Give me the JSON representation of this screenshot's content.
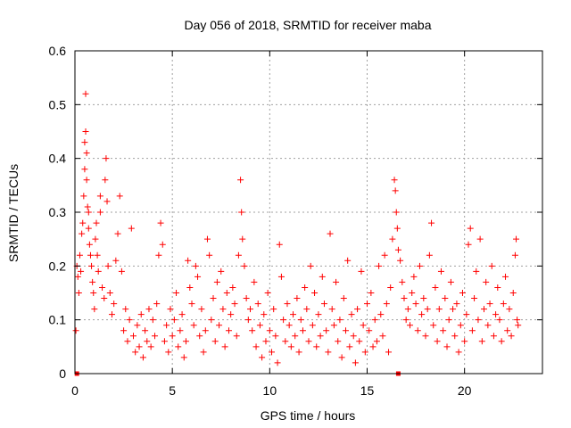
{
  "chart_data": {
    "type": "scatter",
    "title": "Day 056 of 2018, SRMTID for receiver maba",
    "xlabel": "GPS time / hours",
    "ylabel": "SRMTID / TECUs",
    "xlim": [
      0,
      24
    ],
    "ylim": [
      0,
      0.6
    ],
    "x_ticks": [
      0,
      5,
      10,
      15,
      20
    ],
    "x_tick_labels": [
      "0",
      "5",
      "10",
      "15",
      "20"
    ],
    "y_ticks": [
      0,
      0.1,
      0.2,
      0.3,
      0.4,
      0.5,
      0.6
    ],
    "y_tick_labels": [
      "0",
      "0.1",
      "0.2",
      "0.3",
      "0.4",
      "0.5",
      "0.6"
    ],
    "grid": true,
    "marker": "+",
    "marker_color": "#ff0000",
    "grid_color": "#a0a0a0",
    "data_range_hours": [
      0,
      22.75
    ],
    "series": [
      {
        "name": "SRMTID",
        "points": [
          [
            0.05,
            0.08
          ],
          [
            0.1,
            0.2
          ],
          [
            0.15,
            0.18
          ],
          [
            0.2,
            0.15
          ],
          [
            0.25,
            0.22
          ],
          [
            0.3,
            0.19
          ],
          [
            0.35,
            0.26
          ],
          [
            0.4,
            0.28
          ],
          [
            0.45,
            0.33
          ],
          [
            0.5,
            0.38
          ],
          [
            0.5,
            0.43
          ],
          [
            0.55,
            0.45
          ],
          [
            0.55,
            0.52
          ],
          [
            0.6,
            0.41
          ],
          [
            0.6,
            0.36
          ],
          [
            0.65,
            0.31
          ],
          [
            0.7,
            0.3
          ],
          [
            0.7,
            0.27
          ],
          [
            0.75,
            0.24
          ],
          [
            0.8,
            0.22
          ],
          [
            0.85,
            0.2
          ],
          [
            0.9,
            0.17
          ],
          [
            0.95,
            0.15
          ],
          [
            1.0,
            0.12
          ],
          [
            1.05,
            0.25
          ],
          [
            1.1,
            0.28
          ],
          [
            1.15,
            0.22
          ],
          [
            1.2,
            0.19
          ],
          [
            1.3,
            0.33
          ],
          [
            1.3,
            0.3
          ],
          [
            1.4,
            0.16
          ],
          [
            1.5,
            0.14
          ],
          [
            1.55,
            0.36
          ],
          [
            1.6,
            0.4
          ],
          [
            1.65,
            0.32
          ],
          [
            1.7,
            0.2
          ],
          [
            1.8,
            0.15
          ],
          [
            1.9,
            0.11
          ],
          [
            2.0,
            0.13
          ],
          [
            2.1,
            0.21
          ],
          [
            2.2,
            0.26
          ],
          [
            2.3,
            0.33
          ],
          [
            2.4,
            0.19
          ],
          [
            2.5,
            0.08
          ],
          [
            2.6,
            0.12
          ],
          [
            2.7,
            0.06
          ],
          [
            2.8,
            0.1
          ],
          [
            2.9,
            0.27
          ],
          [
            3.0,
            0.07
          ],
          [
            3.1,
            0.04
          ],
          [
            3.2,
            0.09
          ],
          [
            3.3,
            0.05
          ],
          [
            3.4,
            0.11
          ],
          [
            3.5,
            0.03
          ],
          [
            3.6,
            0.08
          ],
          [
            3.7,
            0.06
          ],
          [
            3.8,
            0.12
          ],
          [
            3.9,
            0.05
          ],
          [
            4.0,
            0.1
          ],
          [
            4.1,
            0.07
          ],
          [
            4.2,
            0.13
          ],
          [
            4.3,
            0.22
          ],
          [
            4.4,
            0.28
          ],
          [
            4.5,
            0.24
          ],
          [
            4.6,
            0.06
          ],
          [
            4.7,
            0.09
          ],
          [
            4.8,
            0.04
          ],
          [
            4.9,
            0.12
          ],
          [
            5.0,
            0.07
          ],
          [
            5.1,
            0.1
          ],
          [
            5.2,
            0.15
          ],
          [
            5.3,
            0.05
          ],
          [
            5.4,
            0.08
          ],
          [
            5.5,
            0.11
          ],
          [
            5.6,
            0.03
          ],
          [
            5.7,
            0.06
          ],
          [
            5.8,
            0.21
          ],
          [
            5.9,
            0.16
          ],
          [
            6.0,
            0.13
          ],
          [
            6.1,
            0.09
          ],
          [
            6.2,
            0.2
          ],
          [
            6.3,
            0.18
          ],
          [
            6.4,
            0.07
          ],
          [
            6.5,
            0.12
          ],
          [
            6.6,
            0.04
          ],
          [
            6.7,
            0.08
          ],
          [
            6.8,
            0.25
          ],
          [
            6.9,
            0.22
          ],
          [
            7.0,
            0.1
          ],
          [
            7.1,
            0.14
          ],
          [
            7.2,
            0.06
          ],
          [
            7.3,
            0.17
          ],
          [
            7.4,
            0.09
          ],
          [
            7.5,
            0.19
          ],
          [
            7.6,
            0.12
          ],
          [
            7.7,
            0.05
          ],
          [
            7.8,
            0.15
          ],
          [
            7.9,
            0.08
          ],
          [
            8.0,
            0.11
          ],
          [
            8.1,
            0.16
          ],
          [
            8.2,
            0.13
          ],
          [
            8.3,
            0.07
          ],
          [
            8.4,
            0.22
          ],
          [
            8.5,
            0.36
          ],
          [
            8.55,
            0.3
          ],
          [
            8.6,
            0.25
          ],
          [
            8.7,
            0.2
          ],
          [
            8.8,
            0.14
          ],
          [
            8.9,
            0.1
          ],
          [
            9.0,
            0.12
          ],
          [
            9.1,
            0.08
          ],
          [
            9.2,
            0.17
          ],
          [
            9.3,
            0.05
          ],
          [
            9.4,
            0.13
          ],
          [
            9.5,
            0.09
          ],
          [
            9.6,
            0.03
          ],
          [
            9.7,
            0.11
          ],
          [
            9.8,
            0.06
          ],
          [
            9.9,
            0.15
          ],
          [
            10.0,
            0.08
          ],
          [
            10.1,
            0.04
          ],
          [
            10.2,
            0.12
          ],
          [
            10.3,
            0.07
          ],
          [
            10.4,
            0.02
          ],
          [
            10.5,
            0.24
          ],
          [
            10.6,
            0.18
          ],
          [
            10.7,
            0.1
          ],
          [
            10.8,
            0.06
          ],
          [
            10.9,
            0.13
          ],
          [
            11.0,
            0.09
          ],
          [
            11.1,
            0.05
          ],
          [
            11.2,
            0.11
          ],
          [
            11.3,
            0.07
          ],
          [
            11.4,
            0.14
          ],
          [
            11.5,
            0.04
          ],
          [
            11.6,
            0.1
          ],
          [
            11.7,
            0.08
          ],
          [
            11.8,
            0.16
          ],
          [
            11.9,
            0.12
          ],
          [
            12.0,
            0.06
          ],
          [
            12.1,
            0.2
          ],
          [
            12.2,
            0.09
          ],
          [
            12.3,
            0.15
          ],
          [
            12.4,
            0.05
          ],
          [
            12.5,
            0.11
          ],
          [
            12.6,
            0.07
          ],
          [
            12.7,
            0.18
          ],
          [
            12.8,
            0.13
          ],
          [
            12.9,
            0.08
          ],
          [
            13.0,
            0.04
          ],
          [
            13.1,
            0.26
          ],
          [
            13.2,
            0.12
          ],
          [
            13.3,
            0.09
          ],
          [
            13.4,
            0.17
          ],
          [
            13.5,
            0.06
          ],
          [
            13.6,
            0.1
          ],
          [
            13.7,
            0.03
          ],
          [
            13.8,
            0.14
          ],
          [
            13.9,
            0.08
          ],
          [
            14.0,
            0.21
          ],
          [
            14.1,
            0.05
          ],
          [
            14.2,
            0.11
          ],
          [
            14.3,
            0.07
          ],
          [
            14.4,
            0.02
          ],
          [
            14.5,
            0.12
          ],
          [
            14.6,
            0.06
          ],
          [
            14.7,
            0.19
          ],
          [
            14.8,
            0.09
          ],
          [
            14.9,
            0.04
          ],
          [
            15.0,
            0.13
          ],
          [
            15.1,
            0.08
          ],
          [
            15.2,
            0.15
          ],
          [
            15.3,
            0.05
          ],
          [
            15.4,
            0.1
          ],
          [
            15.5,
            0.06
          ],
          [
            15.6,
            0.2
          ],
          [
            15.7,
            0.11
          ],
          [
            15.8,
            0.07
          ],
          [
            15.9,
            0.22
          ],
          [
            16.0,
            0.13
          ],
          [
            16.1,
            0.04
          ],
          [
            16.2,
            0.16
          ],
          [
            16.3,
            0.25
          ],
          [
            16.4,
            0.36
          ],
          [
            16.45,
            0.34
          ],
          [
            16.5,
            0.3
          ],
          [
            16.55,
            0.27
          ],
          [
            16.6,
            0.23
          ],
          [
            16.7,
            0.21
          ],
          [
            16.8,
            0.17
          ],
          [
            16.9,
            0.14
          ],
          [
            17.0,
            0.1
          ],
          [
            17.1,
            0.12
          ],
          [
            17.2,
            0.09
          ],
          [
            17.3,
            0.15
          ],
          [
            17.4,
            0.18
          ],
          [
            17.5,
            0.13
          ],
          [
            17.6,
            0.08
          ],
          [
            17.7,
            0.2
          ],
          [
            17.8,
            0.11
          ],
          [
            17.9,
            0.14
          ],
          [
            18.0,
            0.07
          ],
          [
            18.1,
            0.12
          ],
          [
            18.2,
            0.22
          ],
          [
            18.3,
            0.28
          ],
          [
            18.4,
            0.09
          ],
          [
            18.5,
            0.16
          ],
          [
            18.6,
            0.06
          ],
          [
            18.7,
            0.12
          ],
          [
            18.8,
            0.19
          ],
          [
            18.9,
            0.08
          ],
          [
            19.0,
            0.14
          ],
          [
            19.1,
            0.05
          ],
          [
            19.2,
            0.1
          ],
          [
            19.3,
            0.17
          ],
          [
            19.4,
            0.12
          ],
          [
            19.5,
            0.07
          ],
          [
            19.6,
            0.13
          ],
          [
            19.7,
            0.04
          ],
          [
            19.8,
            0.09
          ],
          [
            19.9,
            0.15
          ],
          [
            20.0,
            0.06
          ],
          [
            20.1,
            0.11
          ],
          [
            20.2,
            0.24
          ],
          [
            20.3,
            0.27
          ],
          [
            20.4,
            0.08
          ],
          [
            20.5,
            0.14
          ],
          [
            20.6,
            0.19
          ],
          [
            20.7,
            0.1
          ],
          [
            20.8,
            0.25
          ],
          [
            20.9,
            0.06
          ],
          [
            21.0,
            0.12
          ],
          [
            21.1,
            0.17
          ],
          [
            21.2,
            0.09
          ],
          [
            21.3,
            0.13
          ],
          [
            21.4,
            0.2
          ],
          [
            21.5,
            0.07
          ],
          [
            21.6,
            0.11
          ],
          [
            21.7,
            0.16
          ],
          [
            21.8,
            0.1
          ],
          [
            21.9,
            0.06
          ],
          [
            22.0,
            0.13
          ],
          [
            22.1,
            0.18
          ],
          [
            22.2,
            0.08
          ],
          [
            22.3,
            0.12
          ],
          [
            22.4,
            0.07
          ],
          [
            22.5,
            0.15
          ],
          [
            22.6,
            0.22
          ],
          [
            22.65,
            0.25
          ],
          [
            22.7,
            0.1
          ],
          [
            22.75,
            0.09
          ]
        ]
      }
    ],
    "axis_markers": [
      [
        0.1,
        0.0
      ],
      [
        16.6,
        0.0
      ]
    ]
  }
}
